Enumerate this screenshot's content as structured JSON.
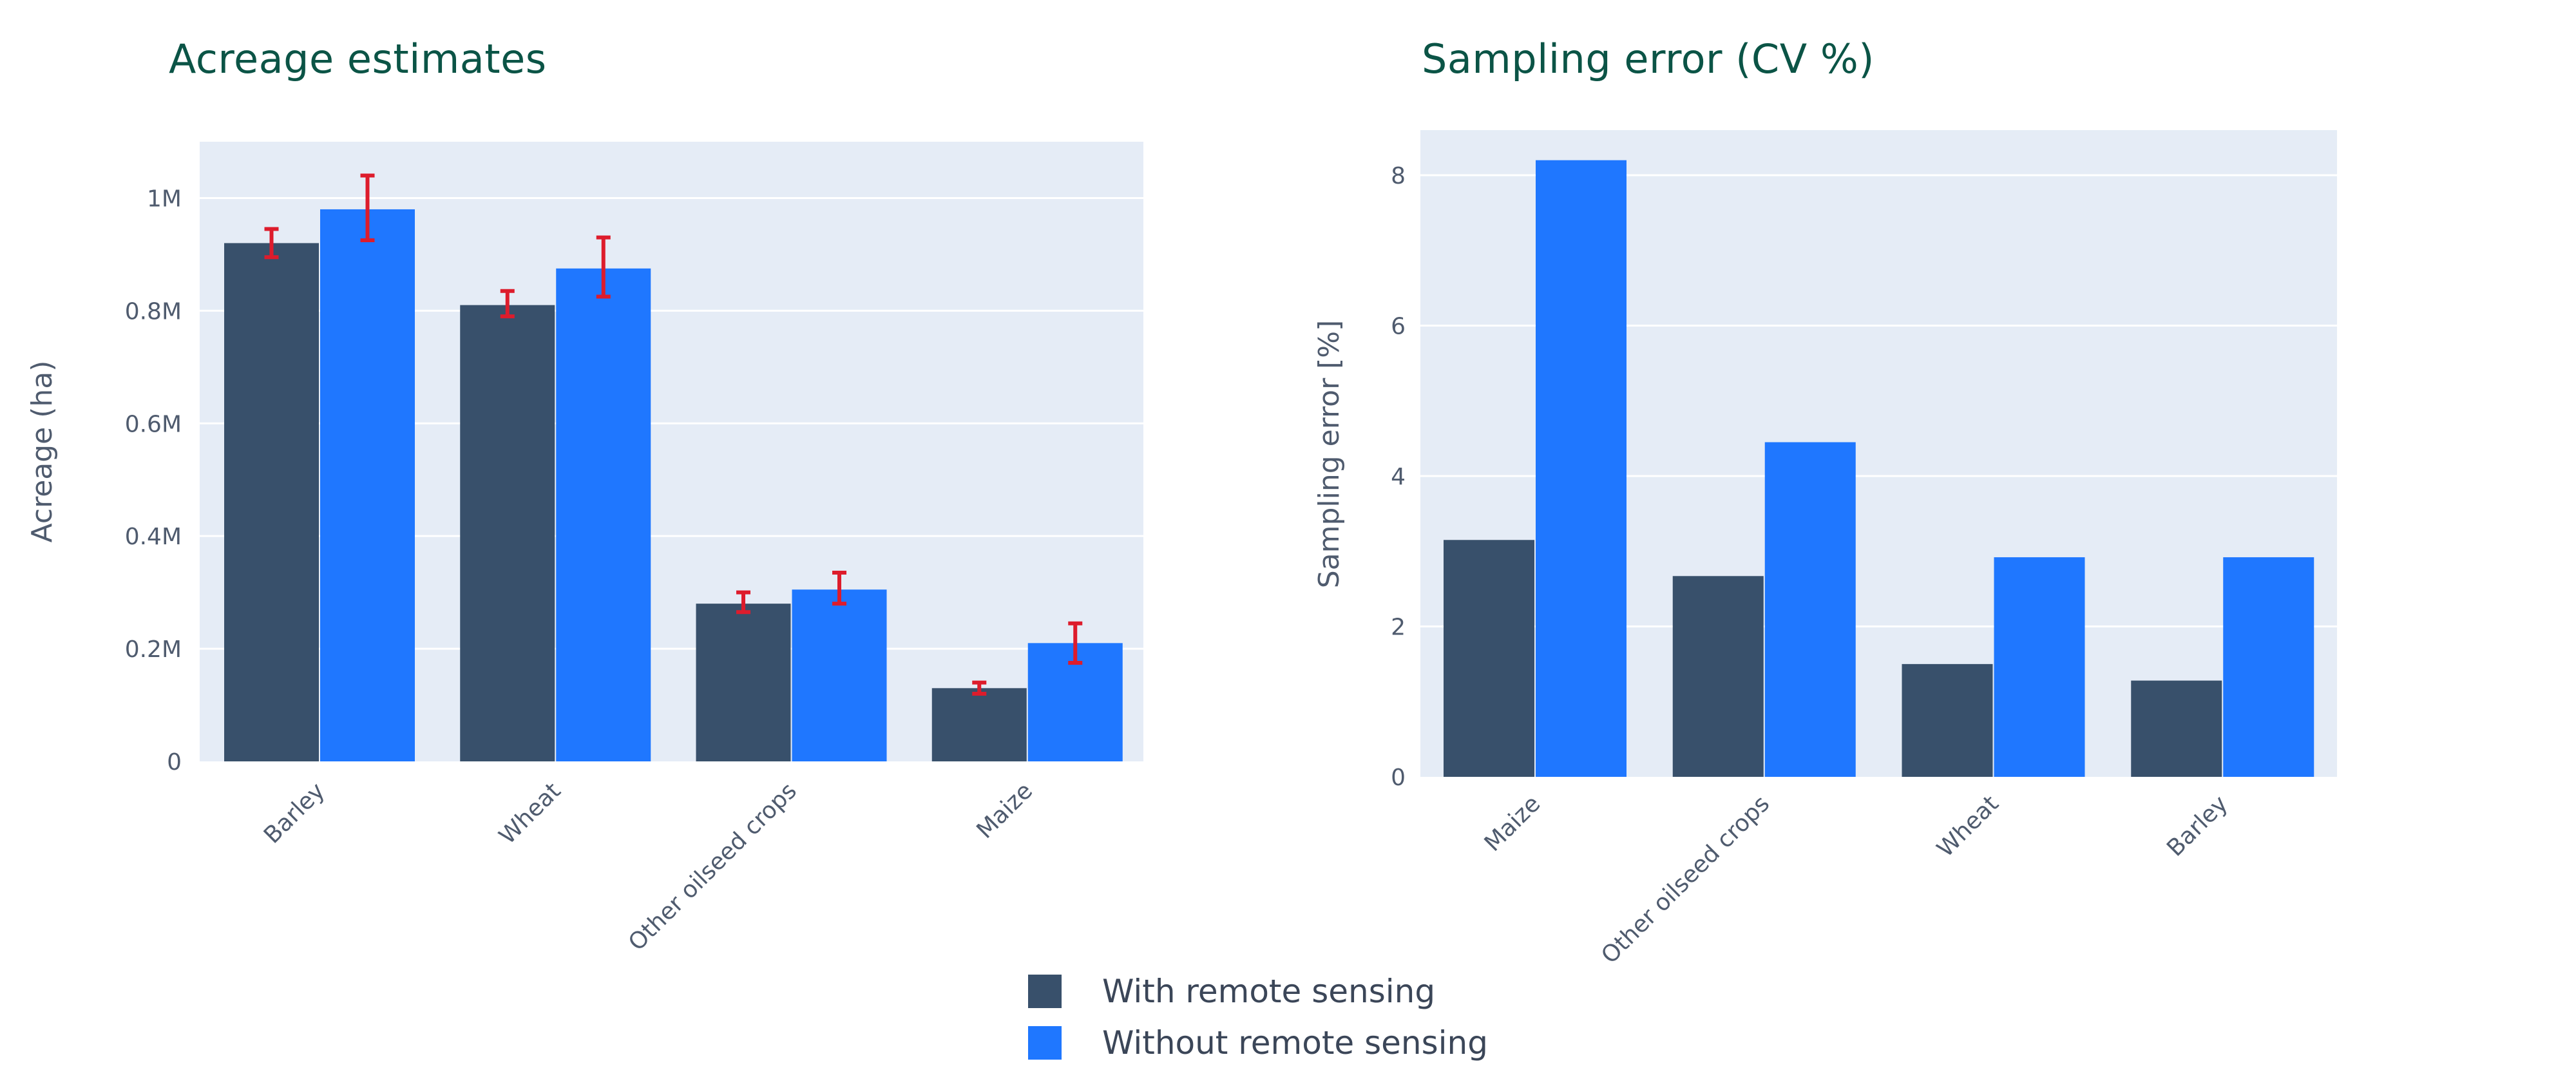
{
  "colors": {
    "with": "#38506b",
    "without": "#1f77ff",
    "error_bar": "#dd1c2c",
    "plot_bg": "#e5ecf6",
    "title": "#0b5446"
  },
  "legend": {
    "items": [
      {
        "label": "With remote sensing",
        "color": "#38506b"
      },
      {
        "label": "Without remote sensing",
        "color": "#1f77ff"
      }
    ],
    "placement": "bottom-center"
  },
  "chart_data": [
    {
      "type": "bar",
      "title": "Acreage estimates",
      "ylabel": "Acreage (ha)",
      "xlabel": "",
      "categories": [
        "Barley",
        "Wheat",
        "Other oilseed crops",
        "Maize"
      ],
      "ylim": [
        0,
        1.1
      ],
      "yticks": [
        0,
        0.2,
        0.4,
        0.6,
        0.8,
        1.0
      ],
      "ytick_labels": [
        "0",
        "0.2M",
        "0.4M",
        "0.6M",
        "0.8M",
        "1M"
      ],
      "grid": true,
      "series": [
        {
          "name": "With remote sensing",
          "values": [
            0.92,
            0.81,
            0.28,
            0.13
          ],
          "error": [
            [
              0.895,
              0.945
            ],
            [
              0.79,
              0.835
            ],
            [
              0.265,
              0.3
            ],
            [
              0.12,
              0.14
            ]
          ]
        },
        {
          "name": "Without remote sensing",
          "values": [
            0.98,
            0.875,
            0.305,
            0.21
          ],
          "error": [
            [
              0.925,
              1.04
            ],
            [
              0.825,
              0.93
            ],
            [
              0.28,
              0.335
            ],
            [
              0.175,
              0.245
            ]
          ]
        }
      ]
    },
    {
      "type": "bar",
      "title": "Sampling error (CV %)",
      "ylabel": "Sampling error [%]",
      "xlabel": "",
      "categories": [
        "Maize",
        "Other oilseed crops",
        "Wheat",
        "Barley"
      ],
      "ylim": [
        0,
        8.6
      ],
      "yticks": [
        0,
        2,
        4,
        6,
        8
      ],
      "ytick_labels": [
        "0",
        "2",
        "4",
        "6",
        "8"
      ],
      "grid": true,
      "series": [
        {
          "name": "With remote sensing",
          "values": [
            3.15,
            2.67,
            1.5,
            1.28
          ]
        },
        {
          "name": "Without remote sensing",
          "values": [
            8.2,
            4.45,
            2.92,
            2.92
          ]
        }
      ]
    }
  ]
}
